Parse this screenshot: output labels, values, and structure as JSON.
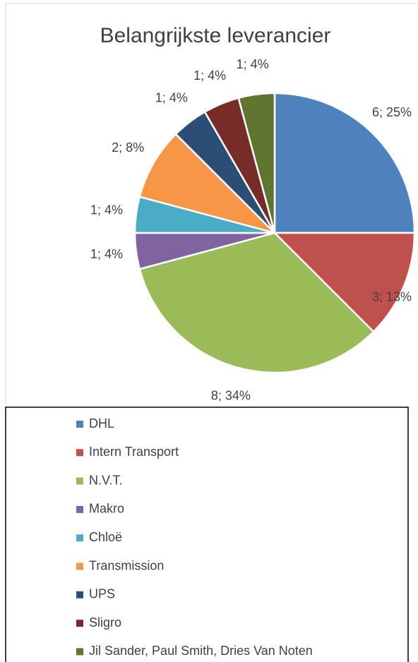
{
  "chart_data": {
    "type": "pie",
    "title": "Belangrijkste leverancier",
    "categories": [
      "DHL",
      "Intern Transport",
      "N.V.T.",
      "Makro",
      "Chloë",
      "Transmission",
      "UPS",
      "Sligro",
      "Jil Sander, Paul Smith, Dries Van Noten"
    ],
    "values": [
      6,
      3,
      8,
      1,
      1,
      2,
      1,
      1,
      1
    ],
    "value_labels": [
      "6; 25%",
      "3; 13%",
      "8; 34%",
      "1; 4%",
      "1; 4%",
      "2; 8%",
      "1; 4%",
      "1; 4%",
      "1; 4%"
    ],
    "colors": [
      "#4f81bd",
      "#c0504d",
      "#9bbb59",
      "#8064a2",
      "#4bacc6",
      "#f79646",
      "#2c4d75",
      "#772c2a",
      "#5f7530"
    ],
    "legend": "bottom"
  }
}
